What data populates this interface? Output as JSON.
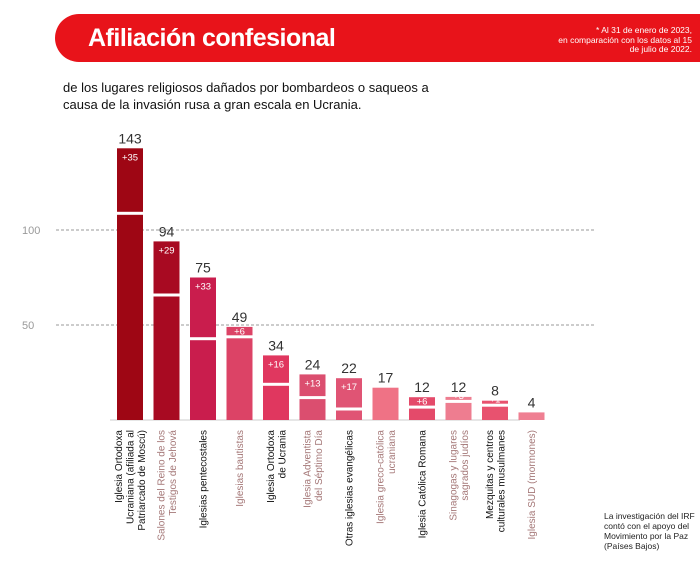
{
  "header": {
    "title": "Afiliación confesional",
    "note_lines": [
      "* Al 31 de enero de 2023,",
      "en comparación con los datos al 15",
      "de julio de 2022."
    ]
  },
  "subtitle": "de los lugares religiosos dañados por bombardeos o saqueos a causa de la invasión rusa a gran escala en Ucrania.",
  "footer_note": "La investigación del IRF contó con el apoyo del Movimiento por la Paz (Países Bajos)",
  "colors": {
    "header": "#e8131a",
    "tick_label": "#9a9a9a",
    "gridline": "#9a9a9a"
  },
  "chart_data": {
    "type": "bar",
    "title": "",
    "xlabel": "",
    "ylabel": "",
    "ylim": [
      0,
      150
    ],
    "yticks": [
      50,
      100
    ],
    "grid": true,
    "categories": [
      [
        "Iglesia Ortodoxa",
        "Ucraniana (afiliada al",
        "Patriarcado de Moscú)"
      ],
      [
        "Salones del Reino de los",
        "Testigos de Jehová"
      ],
      [
        "Iglesias pentecostales"
      ],
      [
        "Iglesias bautistas"
      ],
      [
        "Iglesia Ortodoxa",
        "de Ucrania"
      ],
      [
        "Iglesia Adventista",
        "del Séptimo Día"
      ],
      [
        "Otras iglesias evangélicas"
      ],
      [
        "Iglesia greco-católica",
        "ucraniana"
      ],
      [
        "Iglesia Católica Romana"
      ],
      [
        "Sinagogas y lugares",
        "sagrados judíos"
      ],
      [
        "Mezquitas y centros",
        "culturales musulmanes"
      ],
      [
        "Iglesia SUD (mormones)"
      ]
    ],
    "totals": [
      143,
      94,
      75,
      49,
      34,
      24,
      22,
      17,
      12,
      12,
      8,
      4
    ],
    "increments": [
      35,
      29,
      33,
      6,
      16,
      13,
      17,
      0,
      6,
      3,
      1,
      0
    ],
    "increment_labels": [
      "+35",
      "+29",
      "+33",
      "+6",
      "+16",
      "+13",
      "+17",
      "",
      "+6",
      "+3",
      "+1",
      ""
    ],
    "total_labels": [
      "143",
      "94",
      "75",
      "49",
      "34",
      "24",
      "22",
      "17",
      "12",
      "12",
      "8",
      "4"
    ],
    "bar_colors": [
      "#9e0614",
      "#a80a22",
      "#c91d4d",
      "#dc4366",
      "#e0375f",
      "#db4e6f",
      "#e05474",
      "#ef7285",
      "#e44a6a",
      "#ee7d90",
      "#e8526f",
      "#ef7f92"
    ],
    "label_colors": [
      "#111111",
      "#a57878",
      "#111111",
      "#a57878",
      "#111111",
      "#a57878",
      "#111111",
      "#a57878",
      "#111111",
      "#a57878",
      "#111111",
      "#a57878"
    ]
  }
}
